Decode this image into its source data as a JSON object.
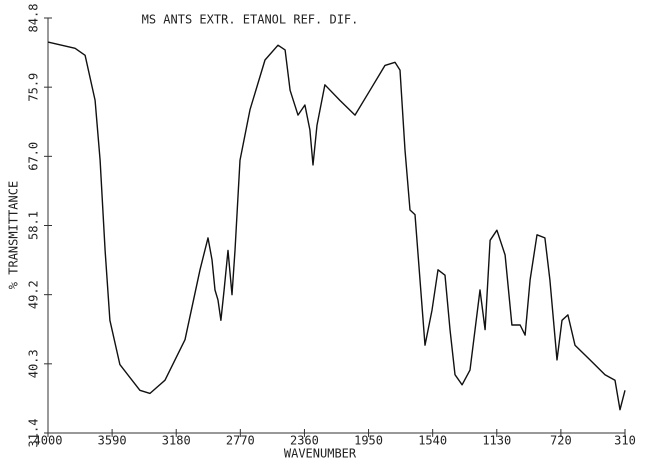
{
  "chart_data": {
    "type": "line",
    "title": "MS ANTS EXTR. ETANOL REF. DIF.",
    "xlabel": "WAVENUMBER",
    "ylabel": "% TRANSMITTANCE",
    "x": [
      4000,
      3827,
      3763,
      3699,
      3667,
      3635,
      3604,
      3540,
      3412,
      3348,
      3252,
      3124,
      3028,
      2977,
      2951,
      2932,
      2913,
      2894,
      2874,
      2849,
      2823,
      2804,
      2772,
      2708,
      2612,
      2529,
      2484,
      2452,
      2401,
      2357,
      2325,
      2305,
      2280,
      2229,
      2133,
      2037,
      1941,
      1845,
      1781,
      1749,
      1717,
      1685,
      1653,
      1621,
      1589,
      1544,
      1506,
      1461,
      1429,
      1397,
      1352,
      1301,
      1237,
      1205,
      1173,
      1129,
      1077,
      1033,
      981,
      949,
      917,
      873,
      822,
      790,
      745,
      713,
      675,
      630,
      534,
      438,
      374,
      342,
      310
    ],
    "values": [
      81.7,
      80.9,
      80.0,
      74.2,
      66.5,
      54.9,
      45.9,
      40.2,
      36.9,
      36.5,
      38.2,
      43.4,
      52.4,
      56.5,
      53.7,
      49.8,
      48.5,
      45.9,
      49.8,
      54.9,
      49.2,
      54.9,
      66.5,
      73.0,
      79.4,
      81.3,
      80.7,
      75.5,
      72.3,
      73.6,
      70.4,
      65.9,
      71.0,
      76.2,
      74.2,
      72.3,
      75.5,
      78.7,
      79.1,
      78.1,
      67.8,
      60.1,
      59.5,
      51.1,
      42.7,
      47.2,
      52.4,
      51.7,
      44.7,
      38.9,
      37.6,
      39.5,
      49.8,
      44.7,
      56.2,
      57.5,
      54.3,
      45.3,
      45.3,
      44.0,
      51.1,
      56.9,
      56.5,
      51.1,
      40.8,
      45.9,
      46.6,
      42.7,
      40.8,
      38.9,
      38.2,
      34.4,
      36.9
    ],
    "color": "#111111",
    "xlim": [
      4000,
      310
    ],
    "xticks": [
      4000,
      3590,
      3180,
      2770,
      2360,
      1950,
      1540,
      1130,
      720,
      310
    ],
    "ylim": [
      31.4,
      84.8
    ],
    "yticks": [
      31.4,
      40.3,
      49.2,
      58.1,
      {
        "value": 67,
        "label": "67.0"
      },
      75.9,
      84.8
    ]
  }
}
